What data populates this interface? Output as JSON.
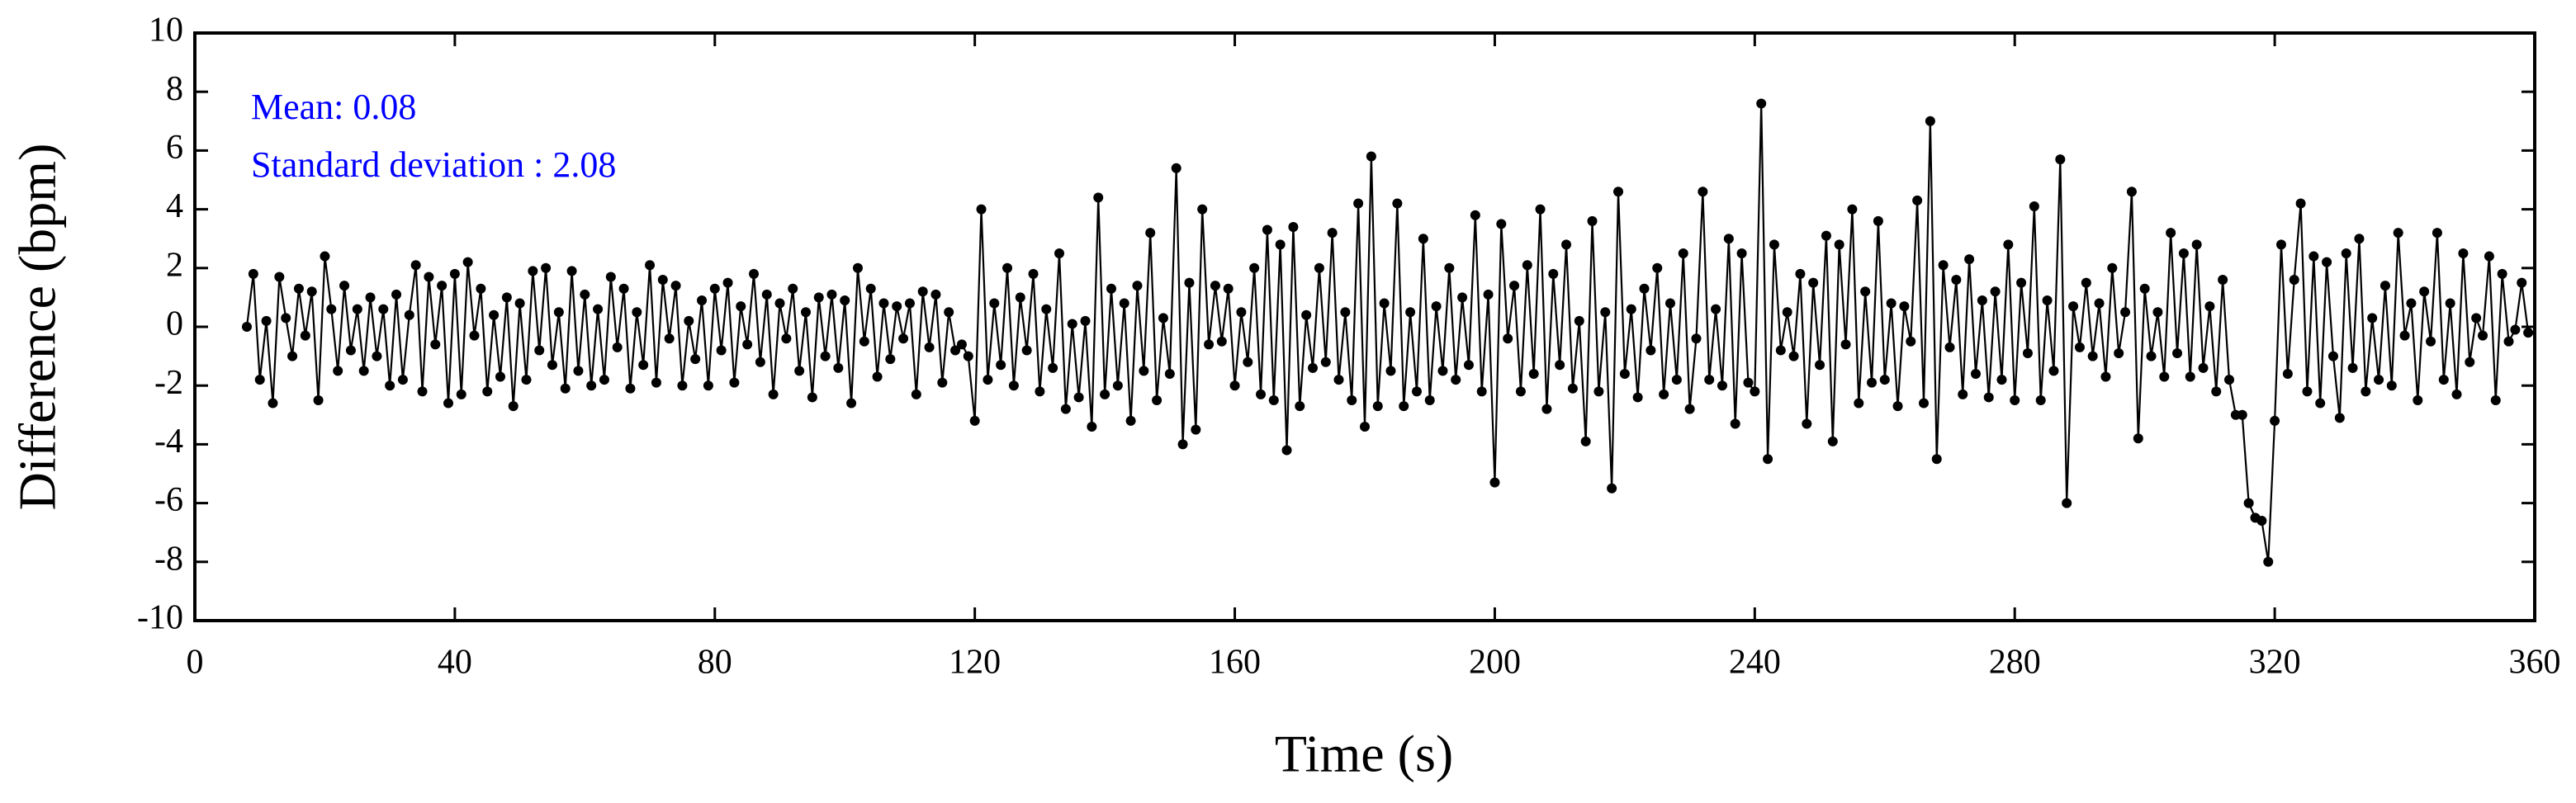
{
  "chart_data": {
    "type": "line",
    "xlabel": "Time (s)",
    "ylabel": "Difference (bpm)",
    "annotations": [
      "Mean: 0.08",
      "Standard deviation : 2.08"
    ],
    "xlim": [
      0,
      360
    ],
    "xticks": [
      0,
      40,
      80,
      120,
      160,
      200,
      240,
      280,
      320,
      360
    ],
    "ylim": [
      -10,
      10
    ],
    "yticks": [
      -10,
      -8,
      -6,
      -4,
      -2,
      0,
      2,
      4,
      6,
      8,
      10
    ],
    "x": [
      8,
      9,
      10,
      11,
      12,
      13,
      14,
      15,
      16,
      17,
      18,
      19,
      20,
      21,
      22,
      23,
      24,
      25,
      26,
      27,
      28,
      29,
      30,
      31,
      32,
      33,
      34,
      35,
      36,
      37,
      38,
      39,
      40,
      41,
      42,
      43,
      44,
      45,
      46,
      47,
      48,
      49,
      50,
      51,
      52,
      53,
      54,
      55,
      56,
      57,
      58,
      59,
      60,
      61,
      62,
      63,
      64,
      65,
      66,
      67,
      68,
      69,
      70,
      71,
      72,
      73,
      74,
      75,
      76,
      77,
      78,
      79,
      80,
      81,
      82,
      83,
      84,
      85,
      86,
      87,
      88,
      89,
      90,
      91,
      92,
      93,
      94,
      95,
      96,
      97,
      98,
      99,
      100,
      101,
      102,
      103,
      104,
      105,
      106,
      107,
      108,
      109,
      110,
      111,
      112,
      113,
      114,
      115,
      116,
      117,
      118,
      119,
      120,
      121,
      122,
      123,
      124,
      125,
      126,
      127,
      128,
      129,
      130,
      131,
      132,
      133,
      134,
      135,
      136,
      137,
      138,
      139,
      140,
      141,
      142,
      143,
      144,
      145,
      146,
      147,
      148,
      149,
      150,
      151,
      152,
      153,
      154,
      155,
      156,
      157,
      158,
      159,
      160,
      161,
      162,
      163,
      164,
      165,
      166,
      167,
      168,
      169,
      170,
      171,
      172,
      173,
      174,
      175,
      176,
      177,
      178,
      179,
      180,
      181,
      182,
      183,
      184,
      185,
      186,
      187,
      188,
      189,
      190,
      191,
      192,
      193,
      194,
      195,
      196,
      197,
      198,
      199,
      200,
      201,
      202,
      203,
      204,
      205,
      206,
      207,
      208,
      209,
      210,
      211,
      212,
      213,
      214,
      215,
      216,
      217,
      218,
      219,
      220,
      221,
      222,
      223,
      224,
      225,
      226,
      227,
      228,
      229,
      230,
      231,
      232,
      233,
      234,
      235,
      236,
      237,
      238,
      239,
      240,
      241,
      242,
      243,
      244,
      245,
      246,
      247,
      248,
      249,
      250,
      251,
      252,
      253,
      254,
      255,
      256,
      257,
      258,
      259,
      260,
      261,
      262,
      263,
      264,
      265,
      266,
      267,
      268,
      269,
      270,
      271,
      272,
      273,
      274,
      275,
      276,
      277,
      278,
      279,
      280,
      281,
      282,
      283,
      284,
      285,
      286,
      287,
      288,
      289,
      290,
      291,
      292,
      293,
      294,
      295,
      296,
      297,
      298,
      299,
      300,
      301,
      302,
      303,
      304,
      305,
      306,
      307,
      308,
      309,
      310,
      311,
      312,
      313,
      314,
      315,
      316,
      317,
      318,
      319,
      320,
      321,
      322,
      323,
      324,
      325,
      326,
      327,
      328,
      329,
      330,
      331,
      332,
      333,
      334,
      335,
      336,
      337,
      338,
      339,
      340,
      341,
      342,
      343,
      344,
      345,
      346,
      347,
      348,
      349,
      350,
      351,
      352,
      353,
      354,
      355,
      356,
      357,
      358,
      359
    ],
    "series": [
      {
        "color": "#000000",
        "values": [
          0,
          1.8,
          -1.8,
          0.2,
          -2.6,
          1.7,
          0.3,
          -1,
          1.3,
          -0.3,
          1.2,
          -2.5,
          2.4,
          0.6,
          -1.5,
          1.4,
          -0.8,
          0.6,
          -1.5,
          1,
          -1,
          0.6,
          -2,
          1.1,
          -1.8,
          0.4,
          2.1,
          -2.2,
          1.7,
          -0.6,
          1.4,
          -2.6,
          1.8,
          -2.3,
          2.2,
          -0.3,
          1.3,
          -2.2,
          0.4,
          -1.7,
          1,
          -2.7,
          0.8,
          -1.8,
          1.9,
          -0.8,
          2,
          -1.3,
          0.5,
          -2.1,
          1.9,
          -1.5,
          1.1,
          -2,
          0.6,
          -1.8,
          1.7,
          -0.7,
          1.3,
          -2.1,
          0.5,
          -1.3,
          2.1,
          -1.9,
          1.6,
          -0.4,
          1.4,
          -2,
          0.2,
          -1.1,
          0.9,
          -2,
          1.3,
          -0.8,
          1.5,
          -1.9,
          0.7,
          -0.6,
          1.8,
          -1.2,
          1.1,
          -2.3,
          0.8,
          -0.4,
          1.3,
          -1.5,
          0.5,
          -2.4,
          1,
          -1,
          1.1,
          -1.4,
          0.9,
          -2.6,
          2,
          -0.5,
          1.3,
          -1.7,
          0.8,
          -1.1,
          0.7,
          -0.4,
          0.8,
          -2.3,
          1.2,
          -0.7,
          1.1,
          -1.9,
          0.5,
          -0.8,
          -0.6,
          -1,
          -3.2,
          4,
          -1.8,
          0.8,
          -1.3,
          2,
          -2,
          1,
          -0.8,
          1.8,
          -2.2,
          0.6,
          -1.4,
          2.5,
          -2.8,
          0.1,
          -2.4,
          0.2,
          -3.4,
          4.4,
          -2.3,
          1.3,
          -2,
          0.8,
          -3.2,
          1.4,
          -1.5,
          3.2,
          -2.5,
          0.3,
          -1.6,
          5.4,
          -4,
          1.5,
          -3.5,
          4,
          -0.6,
          1.4,
          -0.5,
          1.3,
          -2,
          0.5,
          -1.2,
          2,
          -2.3,
          3.3,
          -2.5,
          2.8,
          -4.2,
          3.4,
          -2.7,
          0.4,
          -1.4,
          2,
          -1.2,
          3.2,
          -1.8,
          0.5,
          -2.5,
          4.2,
          -3.4,
          5.8,
          -2.7,
          0.8,
          -1.5,
          4.2,
          -2.7,
          0.5,
          -2.2,
          3,
          -2.5,
          0.7,
          -1.5,
          2,
          -1.8,
          1,
          -1.3,
          3.8,
          -2.2,
          1.1,
          -5.3,
          3.5,
          -0.4,
          1.4,
          -2.2,
          2.1,
          -1.6,
          4,
          -2.8,
          1.8,
          -1.3,
          2.8,
          -2.1,
          0.2,
          -3.9,
          3.6,
          -2.2,
          0.5,
          -5.5,
          4.6,
          -1.6,
          0.6,
          -2.4,
          1.3,
          -0.8,
          2,
          -2.3,
          0.8,
          -1.8,
          2.5,
          -2.8,
          -0.4,
          4.6,
          -1.8,
          0.6,
          -2,
          3,
          -3.3,
          2.5,
          -1.9,
          -2.2,
          7.6,
          -4.5,
          2.8,
          -0.8,
          0.5,
          -1,
          1.8,
          -3.3,
          1.5,
          -1.3,
          3.1,
          -3.9,
          2.8,
          -0.6,
          4,
          -2.6,
          1.2,
          -1.9,
          3.6,
          -1.8,
          0.8,
          -2.7,
          0.7,
          -0.5,
          4.3,
          -2.6,
          7,
          -4.5,
          2.1,
          -0.7,
          1.6,
          -2.3,
          2.3,
          -1.6,
          0.9,
          -2.4,
          1.2,
          -1.8,
          2.8,
          -2.5,
          1.5,
          -0.9,
          4.1,
          -2.5,
          0.9,
          -1.5,
          5.7,
          -6,
          0.7,
          -0.7,
          1.5,
          -1,
          0.8,
          -1.7,
          2,
          -0.9,
          0.5,
          4.6,
          -3.8,
          1.3,
          -1,
          0.5,
          -1.7,
          3.2,
          -0.9,
          2.5,
          -1.7,
          2.8,
          -1.4,
          0.7,
          -2.2,
          1.6,
          -1.8,
          -3,
          -3,
          -6,
          -6.5,
          -6.6,
          -8,
          -3.2,
          2.8,
          -1.6,
          1.6,
          4.2,
          -2.2,
          2.4,
          -2.6,
          2.2,
          -1,
          -3.1,
          2.5,
          -1.4,
          3,
          -2.2,
          0.3,
          -1.8,
          1.4,
          -2,
          3.2,
          -0.3,
          0.8,
          -2.5,
          1.2,
          -0.5,
          3.2,
          -1.8,
          0.8,
          -2.3,
          2.5,
          -1.2,
          0.3,
          -0.3,
          2.4,
          -2.5,
          1.8,
          -0.5,
          -0.1,
          1.5,
          -0.2
        ]
      }
    ],
    "annotation_color": "#0000ff"
  }
}
